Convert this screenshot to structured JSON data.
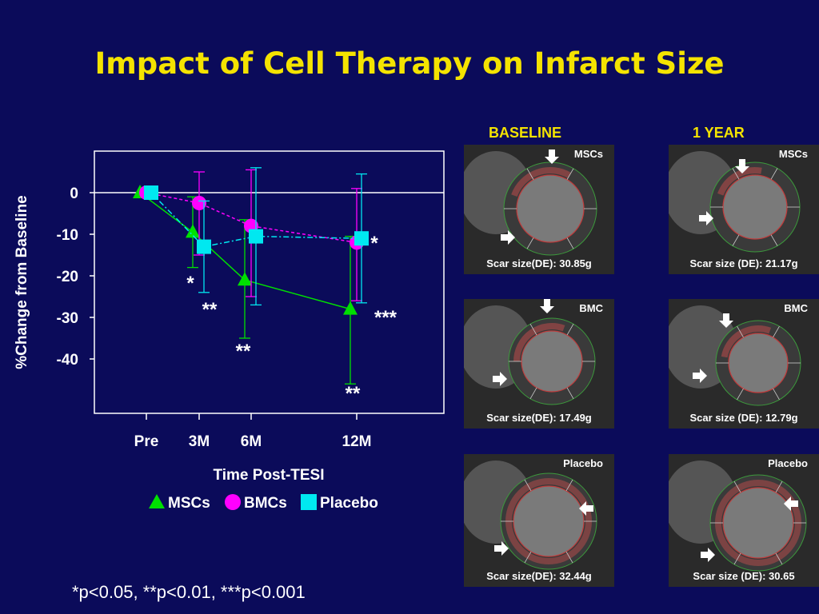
{
  "title": "Impact of Cell Therapy on Infarct Size",
  "footnote": "*p<0.05, **p<0.01, ***p<0.001",
  "colors": {
    "msc": "#00e000",
    "bmc": "#ff00ff",
    "placebo": "#00e8f0",
    "title": "#f4e300"
  },
  "chart_data": {
    "type": "line",
    "xlabel": "Time Post-TESI",
    "ylabel": "%Change from Baseline",
    "categories": [
      "Pre",
      "3M",
      "6M",
      "12M"
    ],
    "yticks": [
      0,
      -10,
      -20,
      -30,
      -40
    ],
    "ylim": [
      -53,
      10
    ],
    "grid": false,
    "legend_position": "bottom",
    "series": [
      {
        "name": "MSCs",
        "marker": "triangle",
        "color": "#00e000",
        "values": [
          0,
          -9.5,
          -21,
          -28
        ],
        "err": [
          [
            0,
            0
          ],
          [
            -18,
            -1
          ],
          [
            -35,
            -6.5
          ],
          [
            -46,
            -10.5
          ]
        ],
        "sig": [
          "",
          "*",
          "**",
          "**"
        ]
      },
      {
        "name": "BMCs",
        "marker": "circle",
        "color": "#ff00ff",
        "values": [
          0,
          -2.5,
          -8,
          -12
        ],
        "err": [
          [
            0,
            0
          ],
          [
            -15,
            5
          ],
          [
            -25,
            5.5
          ],
          [
            -26,
            1
          ]
        ],
        "sig": [
          "",
          "",
          "",
          ""
        ]
      },
      {
        "name": "Placebo",
        "marker": "square",
        "color": "#00e8f0",
        "values": [
          0,
          -13,
          -10.5,
          -11
        ],
        "err": [
          [
            0,
            0
          ],
          [
            -24,
            -2
          ],
          [
            -27,
            6
          ],
          [
            -26.5,
            4.5
          ]
        ],
        "sig": [
          "",
          "**",
          "",
          "***"
        ]
      }
    ],
    "extra_annotations": [
      "*"
    ]
  },
  "images": {
    "baseline_label": "BASELINE",
    "year_label": "1 YEAR",
    "panels": [
      {
        "tag": "MSCs",
        "scar": "Scar size(DE): 30.85g"
      },
      {
        "tag": "MSCs",
        "scar": "Scar size (DE): 21.17g"
      },
      {
        "tag": "BMC",
        "scar": "Scar size(DE): 17.49g"
      },
      {
        "tag": "BMC",
        "scar": "Scar size (DE): 12.79g"
      },
      {
        "tag": "Placebo",
        "scar": "Scar size(DE): 32.44g"
      },
      {
        "tag": "Placebo",
        "scar": "Scar size (DE): 30.65"
      }
    ]
  }
}
